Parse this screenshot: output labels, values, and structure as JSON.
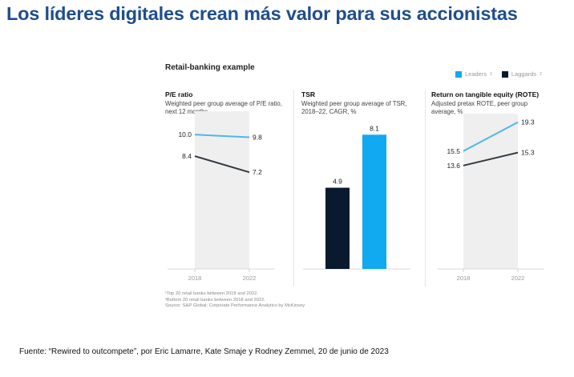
{
  "page": {
    "title": "Los líderes digitales crean más valor para sus accionistas",
    "source": "Fuente: “Rewired to outcompete”, por Eric Lamarre, Kate Smaje y Rodney Zemmel, 20 de junio de 2023"
  },
  "figure": {
    "heading": "Retail-banking example",
    "legend": [
      {
        "label": "Leaders",
        "sup": "1",
        "color": "#11a9f0"
      },
      {
        "label": "Laggards",
        "sup": "2",
        "color": "#0a1a2e"
      }
    ],
    "footnotes": [
      "¹Top 20 retail banks between 2018 and 2022.",
      "²Bottom 20 retail banks between 2018 and 2022.",
      "Source: S&P Global; Corporate Performance Analytics by McKinsey"
    ]
  },
  "colors": {
    "title": "#1f4e8c",
    "leaders_line": "#4db8e8",
    "laggards_line": "#333a40",
    "leaders_bar": "#11a9f0",
    "laggards_bar": "#0a1a2e",
    "band": "#efefef"
  },
  "chart_data": [
    {
      "type": "line",
      "title": "P/E ratio",
      "subtitle": "Weighted peer group average of P/E ratio, next 12 months",
      "x": [
        "2018",
        "2022"
      ],
      "series": [
        {
          "name": "Leaders",
          "values": [
            10.0,
            9.8
          ],
          "labels": [
            "10.0",
            "9.8"
          ]
        },
        {
          "name": "Laggards",
          "values": [
            8.4,
            7.2
          ],
          "labels": [
            "8.4",
            "7.2"
          ]
        }
      ],
      "ylim": [
        0,
        11.5
      ],
      "grid": false
    },
    {
      "type": "bar",
      "title": "TSR",
      "subtitle": "Weighted peer group average of TSR, 2018–22, CAGR, %",
      "categories": [
        "Laggards",
        "Leaders"
      ],
      "values": [
        4.9,
        8.1
      ],
      "labels": [
        "4.9",
        "8.1"
      ],
      "ylim": [
        0,
        8.5
      ],
      "grid": false
    },
    {
      "type": "line",
      "title": "Return on tangible equity (ROTE)",
      "subtitle": "Adjusted pretax ROTE, peer group average, %",
      "x": [
        "2018",
        "2022"
      ],
      "series": [
        {
          "name": "Leaders",
          "values": [
            15.5,
            19.3
          ],
          "labels": [
            "15.5",
            "19.3"
          ]
        },
        {
          "name": "Laggards",
          "values": [
            13.6,
            15.3
          ],
          "labels": [
            "13.6",
            "15.3"
          ]
        }
      ],
      "ylim": [
        0,
        20
      ],
      "grid": false
    }
  ]
}
